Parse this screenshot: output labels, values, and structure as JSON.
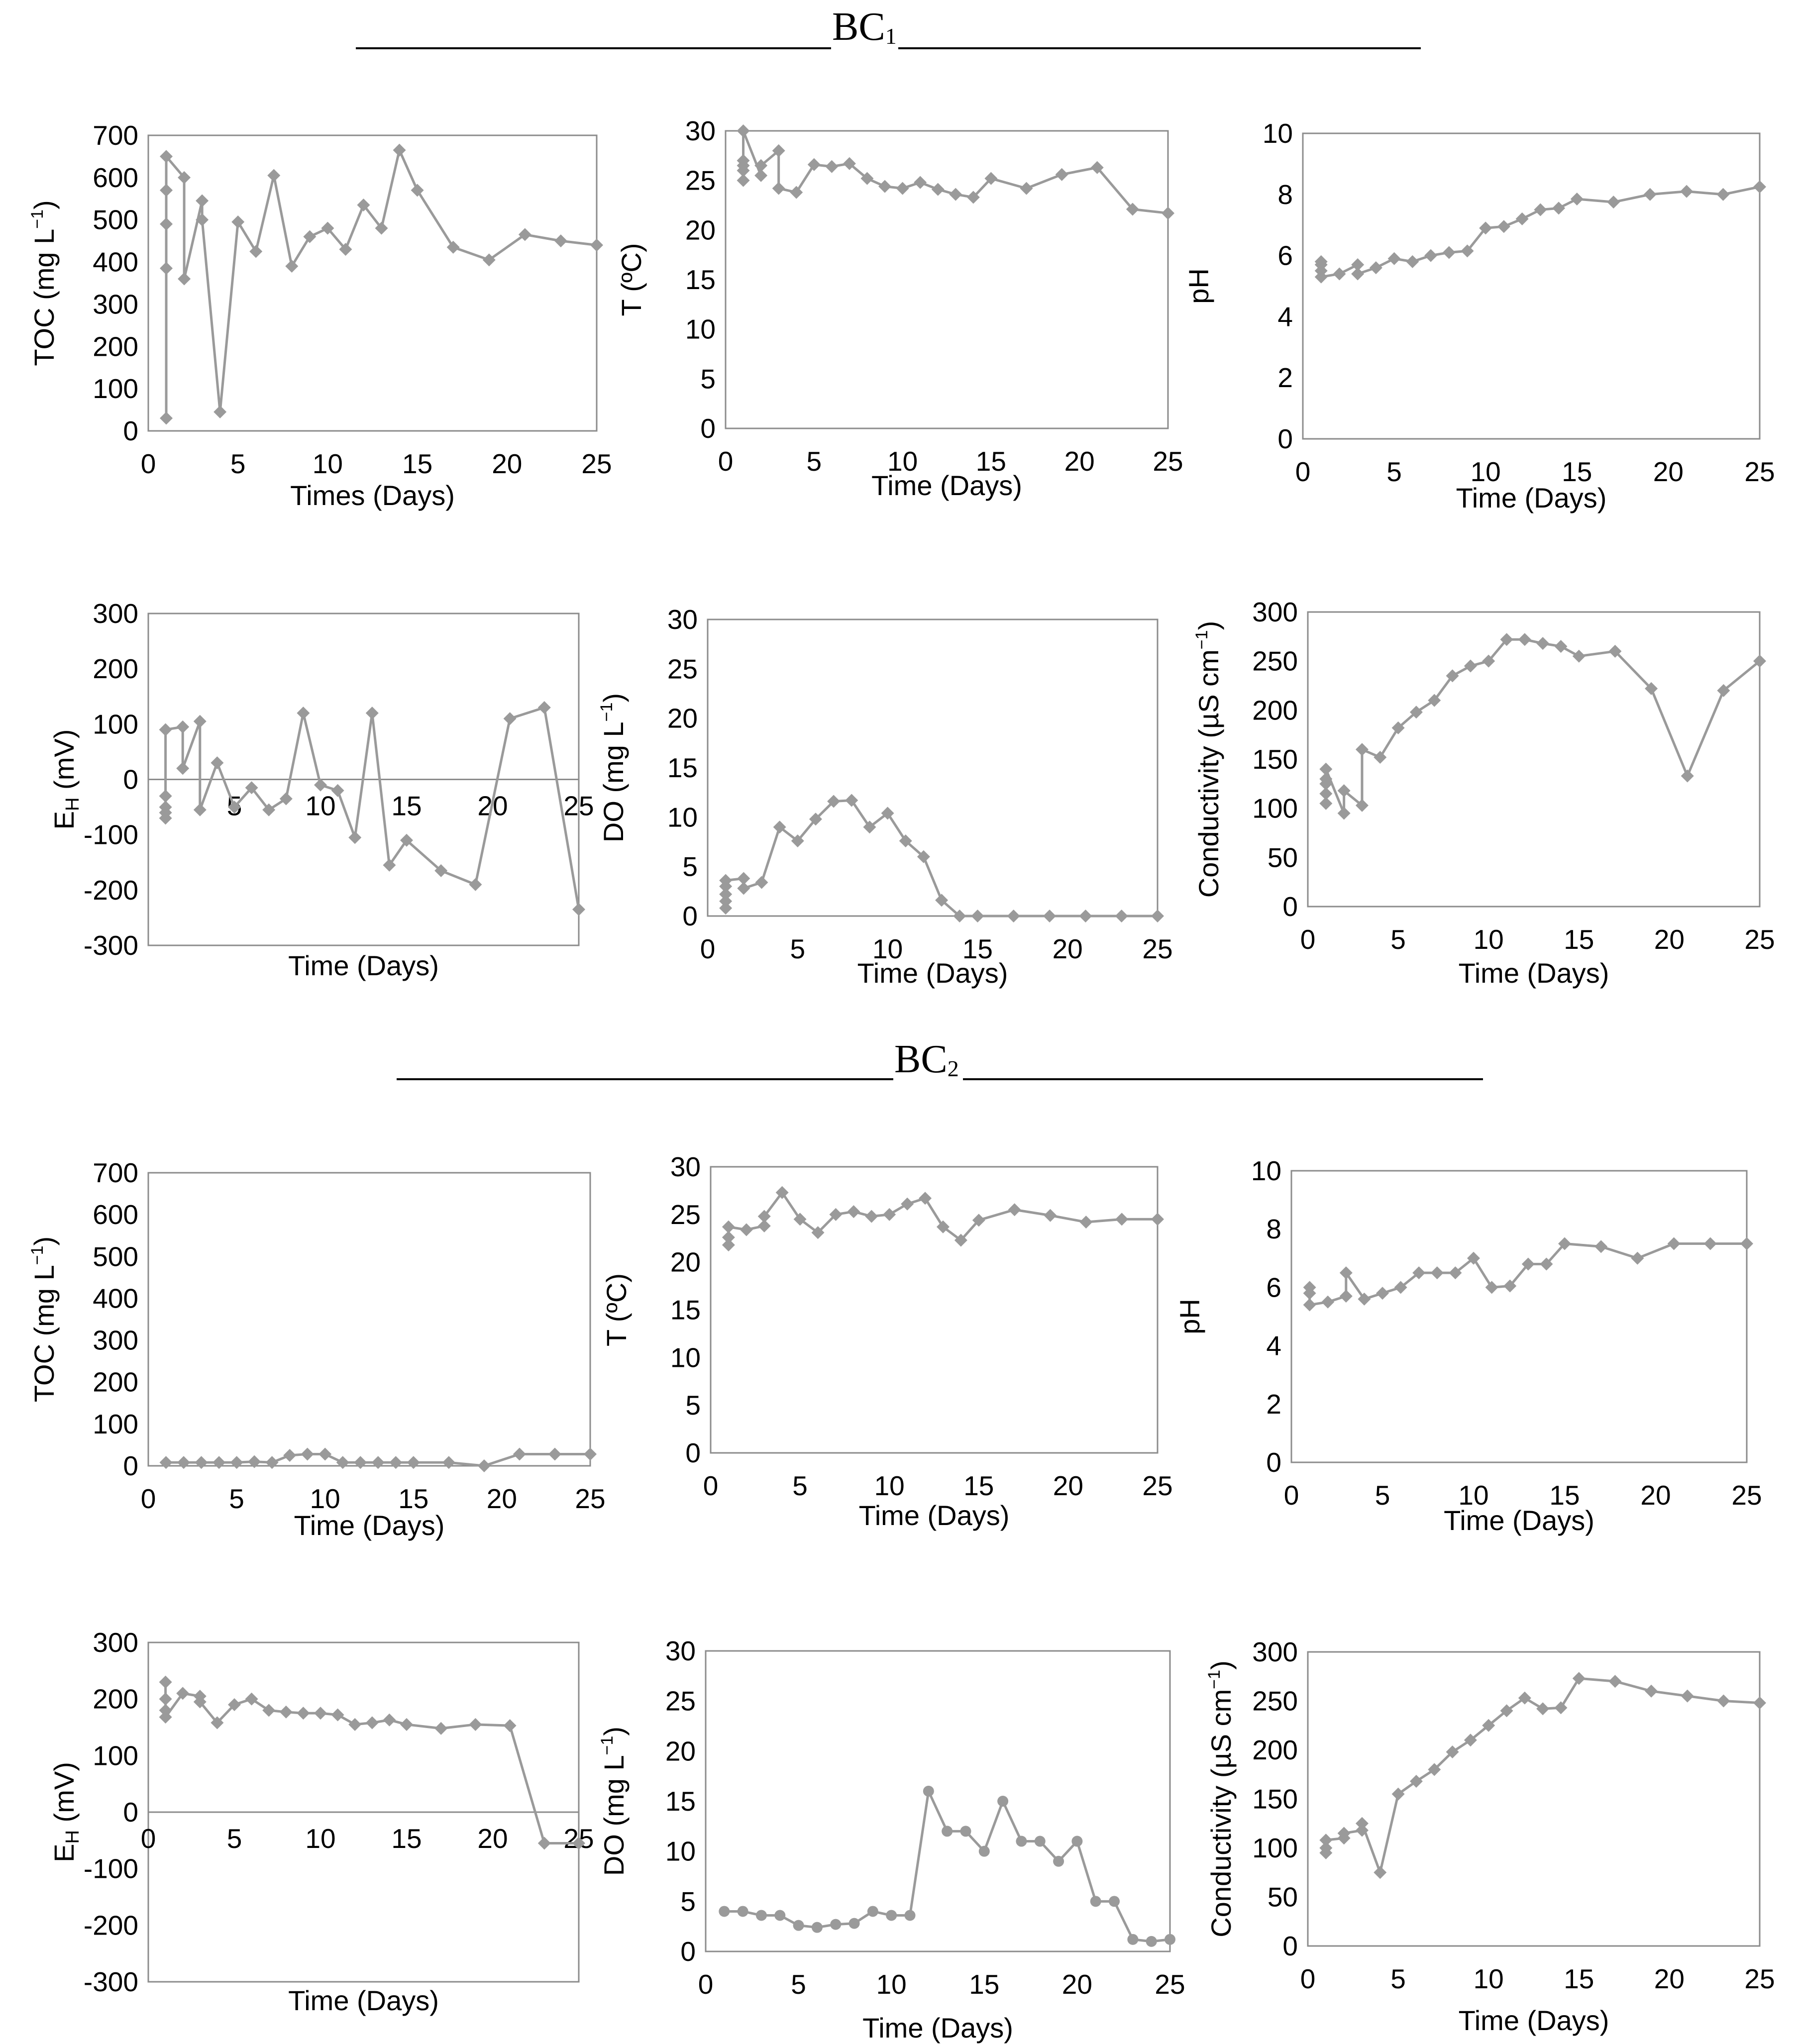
{
  "sections": [
    {
      "base": "BC",
      "sub": "1"
    },
    {
      "base": "BC",
      "sub": "2"
    }
  ],
  "chart_data": [
    {
      "id": "bc1-toc",
      "type": "line",
      "section": "BC1",
      "marker": "diamond",
      "xlabel": "Times (Days)",
      "ylabel": {
        "main": "TOC (mg L",
        "sup": "−1",
        "end": ")"
      },
      "xlim": [
        0,
        25
      ],
      "ylim": [
        0,
        700
      ],
      "xticks": [
        0,
        5,
        10,
        15,
        20,
        25
      ],
      "yticks": [
        0,
        100,
        200,
        300,
        400,
        500,
        600,
        700
      ],
      "series": [
        {
          "name": "TOC",
          "x": [
            1,
            1,
            1,
            1,
            1,
            2,
            2,
            3,
            3,
            4,
            5,
            6,
            7,
            8,
            9,
            10,
            11,
            12,
            13,
            14,
            15,
            17,
            19,
            21,
            23,
            25
          ],
          "y": [
            30,
            385,
            490,
            570,
            650,
            600,
            360,
            545,
            500,
            45,
            495,
            425,
            605,
            390,
            460,
            480,
            430,
            535,
            480,
            665,
            570,
            435,
            405,
            465,
            450,
            440
          ]
        }
      ]
    },
    {
      "id": "bc1-temp",
      "type": "line",
      "section": "BC1",
      "marker": "diamond",
      "xlabel": "Time (Days)",
      "ylabel": {
        "main": "T (ºC)"
      },
      "xlim": [
        0,
        25
      ],
      "ylim": [
        0,
        30
      ],
      "xticks": [
        0,
        5,
        10,
        15,
        20,
        25
      ],
      "yticks": [
        0,
        5,
        10,
        15,
        20,
        25,
        30
      ],
      "series": [
        {
          "name": "T",
          "x": [
            1,
            1,
            1,
            1,
            1,
            2,
            2,
            3,
            3,
            4,
            5,
            6,
            7,
            8,
            9,
            10,
            11,
            12,
            13,
            14,
            15,
            17,
            19,
            21,
            23,
            25
          ],
          "y": [
            25,
            26,
            26.5,
            27,
            30,
            25.5,
            26.5,
            28,
            24.2,
            23.8,
            26.6,
            26.4,
            26.7,
            25.2,
            24.4,
            24.2,
            24.8,
            24.1,
            23.6,
            23.3,
            25.2,
            24.2,
            25.6,
            26.3,
            22.1,
            21.7
          ]
        }
      ]
    },
    {
      "id": "bc1-ph",
      "type": "line",
      "section": "BC1",
      "marker": "diamond",
      "xlabel": "Time (Days)",
      "ylabel": {
        "main": "pH"
      },
      "xlim": [
        0,
        25
      ],
      "ylim": [
        0,
        10
      ],
      "xticks": [
        0,
        5,
        10,
        15,
        20,
        25
      ],
      "yticks": [
        0,
        2,
        4,
        6,
        8,
        10
      ],
      "series": [
        {
          "name": "pH",
          "x": [
            1,
            1,
            1,
            1,
            2,
            3,
            3,
            4,
            5,
            6,
            7,
            8,
            9,
            10,
            11,
            12,
            13,
            14,
            15,
            17,
            19,
            21,
            23,
            25
          ],
          "y": [
            5.8,
            5.7,
            5.5,
            5.3,
            5.4,
            5.7,
            5.4,
            5.6,
            5.9,
            5.8,
            6.0,
            6.1,
            6.15,
            6.9,
            6.95,
            7.2,
            7.5,
            7.55,
            7.85,
            7.75,
            8.0,
            8.1,
            8.0,
            8.25
          ]
        }
      ]
    },
    {
      "id": "bc1-eh",
      "type": "line",
      "section": "BC1",
      "marker": "diamond",
      "xaxis_at_zero": true,
      "xlabel": "Time (Days)",
      "ylabel": {
        "main": "E",
        "sub": "H",
        "end": " (mV)"
      },
      "xlim": [
        0,
        25
      ],
      "ylim": [
        -300,
        300
      ],
      "xticks": [
        5,
        10,
        15,
        20,
        25
      ],
      "yticks": [
        -300,
        -200,
        -100,
        0,
        100,
        200,
        300
      ],
      "series": [
        {
          "name": "EH",
          "x": [
            1,
            1,
            1,
            1,
            1,
            2,
            2,
            3,
            3,
            4,
            5,
            6,
            7,
            8,
            9,
            10,
            11,
            12,
            13,
            14,
            15,
            17,
            19,
            21,
            23,
            25
          ],
          "y": [
            -70,
            -60,
            -50,
            -30,
            90,
            95,
            20,
            105,
            -55,
            30,
            -50,
            -15,
            -55,
            -35,
            120,
            -10,
            -20,
            -105,
            120,
            -155,
            -110,
            -165,
            -190,
            110,
            130,
            -235
          ]
        }
      ]
    },
    {
      "id": "bc1-do",
      "type": "line",
      "section": "BC1",
      "marker": "diamond",
      "xlabel": "Time (Days)",
      "ylabel": {
        "main": "DO (mg L",
        "sup": "−1",
        "end": ")"
      },
      "xlim": [
        0,
        25
      ],
      "ylim": [
        0,
        30
      ],
      "xticks": [
        0,
        5,
        10,
        15,
        20,
        25
      ],
      "yticks": [
        0,
        5,
        10,
        15,
        20,
        25,
        30
      ],
      "series": [
        {
          "name": "DO",
          "x": [
            1,
            1,
            1,
            1,
            1,
            2,
            2,
            3,
            4,
            5,
            6,
            7,
            8,
            9,
            10,
            11,
            12,
            13,
            14,
            15,
            17,
            19,
            21,
            23,
            25
          ],
          "y": [
            0.8,
            1.5,
            2.2,
            3.0,
            3.6,
            3.8,
            2.8,
            3.4,
            9.0,
            7.6,
            9.8,
            11.6,
            11.7,
            9.0,
            10.4,
            7.6,
            6.0,
            1.6,
            0.0,
            0.0,
            0.0,
            0.0,
            0.0,
            0.0,
            0.0
          ]
        }
      ]
    },
    {
      "id": "bc1-cond",
      "type": "line",
      "section": "BC1",
      "marker": "diamond",
      "xlabel": "Time (Days)",
      "ylabel": {
        "main": "Conductivity (µS cm",
        "sup": "−1",
        "end": ")"
      },
      "xlim": [
        0,
        25
      ],
      "ylim": [
        0,
        300
      ],
      "xticks": [
        0,
        5,
        10,
        15,
        20,
        25
      ],
      "yticks": [
        0,
        50,
        100,
        150,
        200,
        250,
        300
      ],
      "series": [
        {
          "name": "Conductivity",
          "x": [
            1,
            1,
            1,
            1,
            1,
            2,
            2,
            3,
            3,
            4,
            5,
            6,
            7,
            8,
            9,
            10,
            11,
            12,
            13,
            14,
            15,
            17,
            19,
            21,
            23,
            25
          ],
          "y": [
            105,
            115,
            125,
            130,
            140,
            95,
            118,
            103,
            160,
            152,
            182,
            198,
            210,
            235,
            245,
            250,
            272,
            272,
            268,
            265,
            255,
            260,
            222,
            133,
            220,
            250
          ]
        }
      ]
    },
    {
      "id": "bc2-toc",
      "type": "line",
      "section": "BC2",
      "marker": "diamond",
      "xlabel": "Time (Days)",
      "ylabel": {
        "main": "TOC (mg L",
        "sup": "−1",
        "end": ")"
      },
      "xlim": [
        0,
        25
      ],
      "ylim": [
        0,
        700
      ],
      "xticks": [
        0,
        5,
        10,
        15,
        20,
        25
      ],
      "yticks": [
        0,
        100,
        200,
        300,
        400,
        500,
        600,
        700
      ],
      "series": [
        {
          "name": "TOC",
          "x": [
            1,
            2,
            3,
            4,
            5,
            6,
            7,
            8,
            9,
            10,
            11,
            12,
            13,
            14,
            15,
            17,
            19,
            21,
            23,
            25
          ],
          "y": [
            8,
            8,
            8,
            8,
            8,
            10,
            8,
            25,
            28,
            28,
            8,
            8,
            8,
            8,
            8,
            8,
            0,
            28,
            28,
            28
          ]
        }
      ]
    },
    {
      "id": "bc2-temp",
      "type": "line",
      "section": "BC2",
      "marker": "diamond",
      "xlabel": "Time (Days)",
      "ylabel": {
        "main": "T (ºC)"
      },
      "xlim": [
        0,
        25
      ],
      "ylim": [
        0,
        30
      ],
      "xticks": [
        0,
        5,
        10,
        15,
        20,
        25
      ],
      "yticks": [
        0,
        5,
        10,
        15,
        20,
        25,
        30
      ],
      "series": [
        {
          "name": "T",
          "x": [
            1,
            1,
            1,
            2,
            3,
            3,
            4,
            5,
            6,
            7,
            8,
            9,
            10,
            11,
            12,
            13,
            14,
            15,
            17,
            19,
            21,
            23,
            25
          ],
          "y": [
            21.8,
            22.6,
            23.7,
            23.4,
            23.8,
            24.8,
            27.3,
            24.5,
            23.1,
            25.0,
            25.3,
            24.8,
            25.0,
            26.1,
            26.7,
            23.7,
            22.3,
            24.4,
            25.5,
            24.9,
            24.2,
            24.5,
            24.5
          ]
        }
      ]
    },
    {
      "id": "bc2-ph",
      "type": "line",
      "section": "BC2",
      "marker": "diamond",
      "xlabel": "Time (Days)",
      "ylabel": {
        "main": "pH"
      },
      "xlim": [
        0,
        25
      ],
      "ylim": [
        0,
        10
      ],
      "xticks": [
        0,
        5,
        10,
        15,
        20,
        25
      ],
      "yticks": [
        0,
        2,
        4,
        6,
        8,
        10
      ],
      "series": [
        {
          "name": "pH",
          "x": [
            1,
            1,
            1,
            2,
            3,
            3,
            4,
            5,
            6,
            7,
            8,
            9,
            10,
            11,
            12,
            13,
            14,
            15,
            17,
            19,
            21,
            23,
            25
          ],
          "y": [
            6.0,
            5.8,
            5.4,
            5.5,
            5.7,
            6.5,
            5.6,
            5.8,
            6.0,
            6.5,
            6.5,
            6.5,
            7.0,
            6.0,
            6.05,
            6.8,
            6.8,
            7.5,
            7.4,
            7.0,
            7.5,
            7.5,
            7.5
          ]
        }
      ]
    },
    {
      "id": "bc2-eh",
      "type": "line",
      "section": "BC2",
      "marker": "diamond",
      "xaxis_at_zero": true,
      "xlabel": "Time (Days)",
      "ylabel": {
        "main": "E",
        "sub": "H",
        "end": " (mV)"
      },
      "xlim": [
        0,
        25
      ],
      "ylim": [
        -300,
        300
      ],
      "xticks": [
        0,
        5,
        10,
        15,
        20,
        25
      ],
      "yticks": [
        -300,
        -200,
        -100,
        0,
        100,
        200,
        300
      ],
      "series": [
        {
          "name": "EH",
          "x": [
            1,
            1,
            1,
            1,
            2,
            3,
            3,
            4,
            5,
            6,
            7,
            8,
            9,
            10,
            11,
            12,
            13,
            14,
            15,
            17,
            19,
            21,
            23,
            25
          ],
          "y": [
            230,
            200,
            180,
            168,
            210,
            205,
            195,
            158,
            190,
            200,
            180,
            177,
            175,
            175,
            172,
            155,
            158,
            163,
            155,
            148,
            155,
            153,
            -55,
            -55
          ]
        }
      ]
    },
    {
      "id": "bc2-do",
      "type": "line",
      "section": "BC2",
      "marker": "circle",
      "xlabel": "Time (Days)",
      "ylabel": {
        "main": "DO (mg L",
        "sup": "−1",
        "end": ")"
      },
      "xlim": [
        0,
        25
      ],
      "ylim": [
        0,
        30
      ],
      "xticks": [
        0,
        5,
        10,
        15,
        20,
        25
      ],
      "yticks": [
        0,
        5,
        10,
        15,
        20,
        25,
        30
      ],
      "series": [
        {
          "name": "DO",
          "x": [
            1,
            2,
            3,
            4,
            5,
            6,
            7,
            8,
            9,
            10,
            11,
            12,
            13,
            14,
            15,
            16,
            17,
            18,
            19,
            20,
            21,
            22,
            23,
            24,
            25
          ],
          "y": [
            4.0,
            4.0,
            3.6,
            3.6,
            2.6,
            2.4,
            2.7,
            2.8,
            4.0,
            3.6,
            3.6,
            16.0,
            12.0,
            12.0,
            10.0,
            15.0,
            11.0,
            11.0,
            9.0,
            11.0,
            5.0,
            5.0,
            1.2,
            1.0,
            1.2
          ]
        }
      ]
    },
    {
      "id": "bc2-cond",
      "type": "line",
      "section": "BC2",
      "marker": "diamond",
      "xlabel": "Time (Days)",
      "ylabel": {
        "main": "Conductivity (µS cm",
        "sup": "−1",
        "end": ")"
      },
      "xlim": [
        0,
        25
      ],
      "ylim": [
        0,
        300
      ],
      "xticks": [
        0,
        5,
        10,
        15,
        20,
        25
      ],
      "yticks": [
        0,
        50,
        100,
        150,
        200,
        250,
        300
      ],
      "series": [
        {
          "name": "Conductivity",
          "x": [
            1,
            1,
            1,
            2,
            2,
            3,
            3,
            4,
            5,
            6,
            7,
            8,
            9,
            10,
            11,
            12,
            13,
            14,
            15,
            17,
            19,
            21,
            23,
            25
          ],
          "y": [
            95,
            100,
            108,
            110,
            115,
            118,
            125,
            75,
            155,
            168,
            180,
            198,
            210,
            225,
            240,
            253,
            242,
            243,
            273,
            270,
            260,
            255,
            250,
            248
          ]
        }
      ]
    }
  ]
}
